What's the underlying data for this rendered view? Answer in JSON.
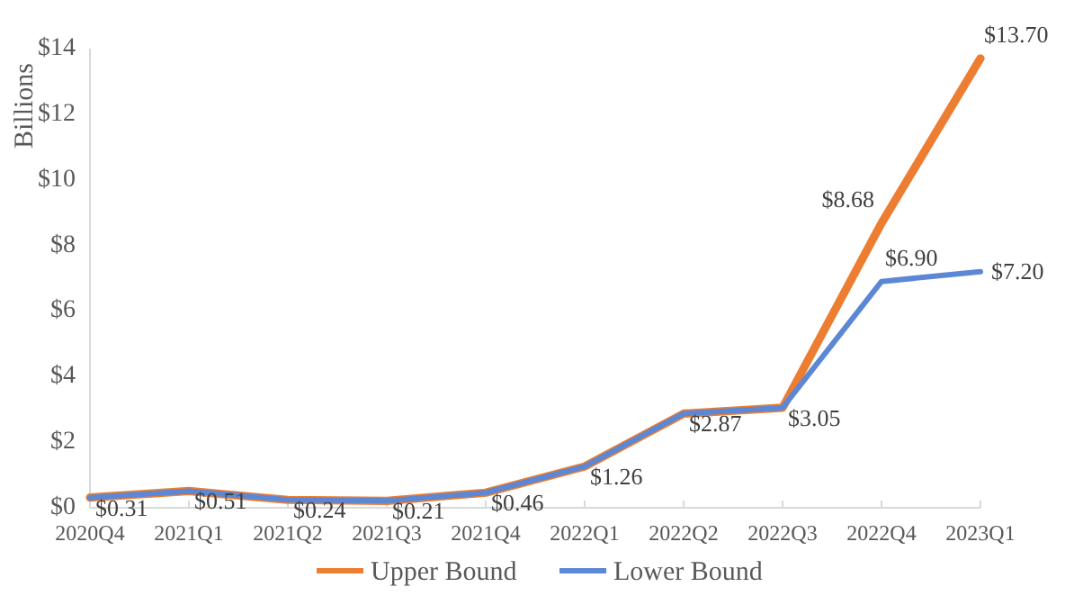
{
  "chart_data": {
    "type": "line",
    "ylabel": "Billions",
    "categories": [
      "2020Q4",
      "2021Q1",
      "2021Q2",
      "2021Q3",
      "2021Q4",
      "2022Q1",
      "2022Q2",
      "2022Q3",
      "2022Q4",
      "2023Q1"
    ],
    "series": [
      {
        "name": "Upper Bound",
        "color": "#ed7d31",
        "values": [
          0.31,
          0.51,
          0.24,
          0.21,
          0.46,
          1.26,
          2.87,
          3.05,
          8.68,
          13.7
        ],
        "value_labels": [
          "$0.31",
          "$0.51",
          "$0.24",
          "$0.21",
          "$0.46",
          "$1.26",
          "$2.87",
          "$3.05",
          "$8.68",
          "$13.70"
        ]
      },
      {
        "name": "Lower Bound",
        "color": "#5b87d5",
        "values": [
          0.31,
          0.51,
          0.24,
          0.21,
          0.46,
          1.26,
          2.87,
          3.05,
          6.9,
          7.2
        ],
        "value_labels": [
          null,
          null,
          null,
          null,
          null,
          null,
          null,
          null,
          "$6.90",
          "$7.20"
        ]
      }
    ],
    "ylim": [
      0,
      14
    ],
    "yticks": [
      {
        "value": 0,
        "label": "$0"
      },
      {
        "value": 2,
        "label": "$2"
      },
      {
        "value": 4,
        "label": "$4"
      },
      {
        "value": 6,
        "label": "$6"
      },
      {
        "value": 8,
        "label": "$8"
      },
      {
        "value": 10,
        "label": "$10"
      },
      {
        "value": 12,
        "label": "$12"
      },
      {
        "value": 14,
        "label": "$14"
      }
    ],
    "grid": false,
    "legend": "bottom",
    "marker": "none",
    "line_style": "solid"
  }
}
